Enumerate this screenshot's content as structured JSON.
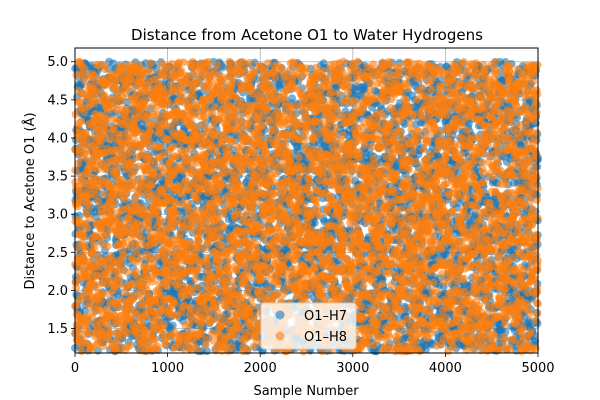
{
  "chart_data": {
    "type": "scatter",
    "title": "Distance from Acetone O1 to Water Hydrogens",
    "xlabel": "Sample Number",
    "ylabel": "Distance to Acetone O1 (Å)",
    "xlim": [
      0,
      5000
    ],
    "ylim": [
      1.18,
      5.18
    ],
    "xticks": [
      0,
      1000,
      2000,
      3000,
      4000,
      5000
    ],
    "yticks": [
      1.5,
      2.0,
      2.5,
      3.0,
      3.5,
      4.0,
      4.5,
      5.0
    ],
    "xtick_labels": [
      "0",
      "1000",
      "2000",
      "3000",
      "4000",
      "5000"
    ],
    "ytick_labels": [
      "1.5",
      "2.0",
      "2.5",
      "3.0",
      "3.5",
      "4.0",
      "4.5",
      "5.0"
    ],
    "grid": true,
    "legend_position": "bottom-center",
    "sampling": {
      "n_points": 5000,
      "distribution": "approximately uniform",
      "y_min": 1.2,
      "y_max": 5.0
    },
    "series": [
      {
        "name": "O1–H7",
        "color": "#1f77b4",
        "alpha": 0.6,
        "seed": 7
      },
      {
        "name": "O1–H8",
        "color": "#ff7f0e",
        "alpha": 0.6,
        "seed": 8
      }
    ]
  }
}
